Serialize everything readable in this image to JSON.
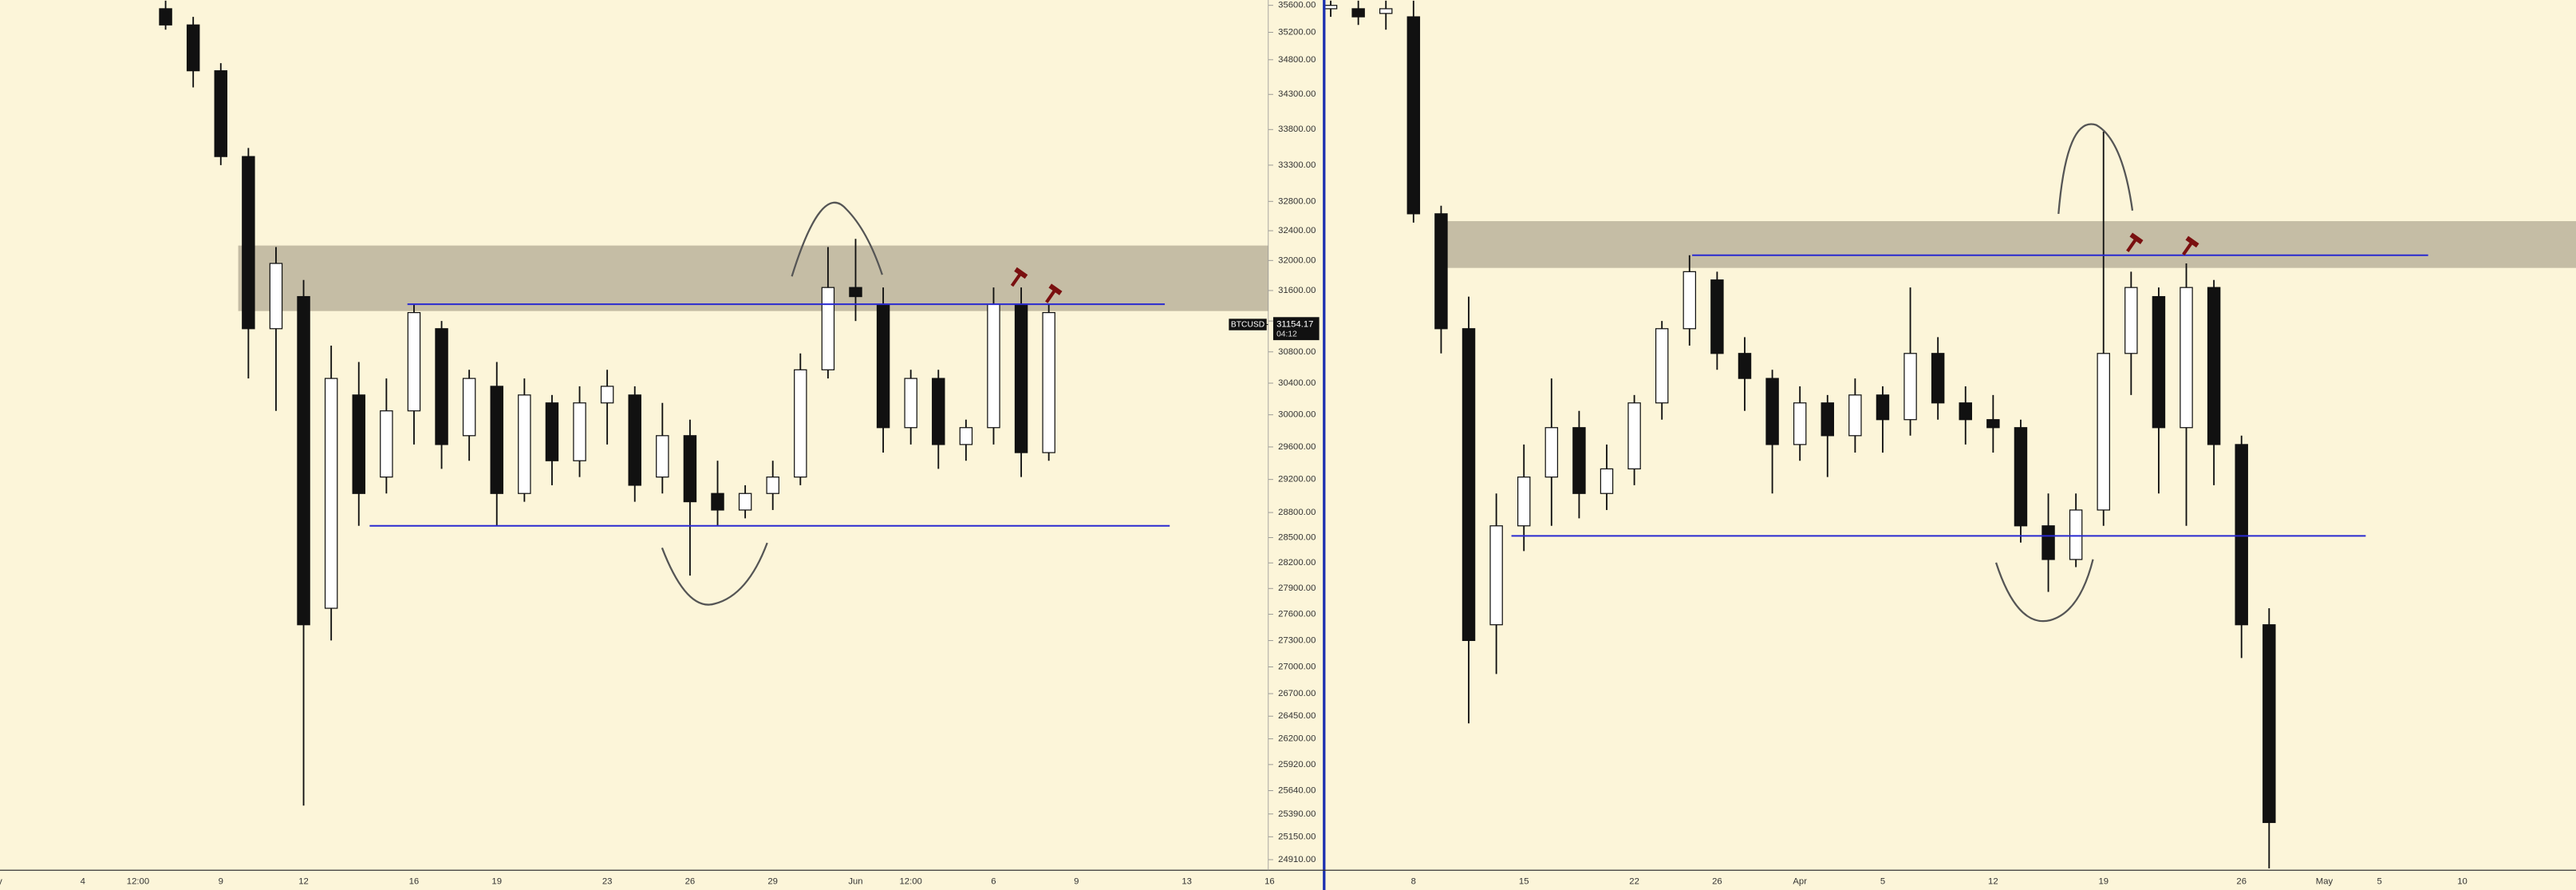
{
  "chart_data": [
    {
      "type": "candlestick",
      "log": true,
      "ylim": [
        24800,
        35680
      ],
      "symbol": "BTCUSD",
      "last_price": 31154.17,
      "countdown": "04:12",
      "levels": [
        31420,
        28640
      ],
      "zone": [
        31330,
        32200
      ],
      "yticks": [
        {
          "value": 35600,
          "label": "35600.00"
        },
        {
          "value": 35200,
          "label": "35200.00"
        },
        {
          "value": 34800,
          "label": "34800.00"
        },
        {
          "value": 34300,
          "label": "34300.00"
        },
        {
          "value": 33800,
          "label": "33800.00"
        },
        {
          "value": 33300,
          "label": "33300.00"
        },
        {
          "value": 32800,
          "label": "32800.00"
        },
        {
          "value": 32400,
          "label": "32400.00"
        },
        {
          "value": 32000,
          "label": "32000.00"
        },
        {
          "value": 31600,
          "label": "31600.00"
        },
        {
          "value": 31200,
          "label": "31200.00"
        },
        {
          "value": 30800,
          "label": "30800.00"
        },
        {
          "value": 30400,
          "label": "30400.00"
        },
        {
          "value": 30000,
          "label": "30000.00"
        },
        {
          "value": 29600,
          "label": "29600.00"
        },
        {
          "value": 29200,
          "label": "29200.00"
        },
        {
          "value": 28800,
          "label": "28800.00"
        },
        {
          "value": 28500,
          "label": "28500.00"
        },
        {
          "value": 28200,
          "label": "28200.00"
        },
        {
          "value": 27900,
          "label": "27900.00"
        },
        {
          "value": 27600,
          "label": "27600.00"
        },
        {
          "value": 27300,
          "label": "27300.00"
        },
        {
          "value": 27000,
          "label": "27000.00"
        },
        {
          "value": 26700,
          "label": "26700.00"
        },
        {
          "value": 26450,
          "label": "26450.00"
        },
        {
          "value": 26200,
          "label": "26200.00"
        },
        {
          "value": 25920,
          "label": "25920.00"
        },
        {
          "value": 25640,
          "label": "25640.00"
        },
        {
          "value": 25390,
          "label": "25390.00"
        },
        {
          "value": 25150,
          "label": "25150.00"
        },
        {
          "value": 24910,
          "label": "24910.00"
        }
      ],
      "categories": [
        "y",
        null,
        null,
        "4",
        null,
        "12:00",
        null,
        null,
        "9",
        null,
        null,
        "12",
        null,
        null,
        null,
        "16",
        null,
        null,
        "19",
        null,
        null,
        null,
        "23",
        null,
        null,
        "26",
        null,
        null,
        "29",
        null,
        null,
        "Jun",
        null,
        "12:00",
        null,
        null,
        "6",
        null,
        null,
        "9",
        null,
        null,
        null,
        "13",
        null,
        null,
        "16"
      ],
      "open": [
        null,
        null,
        null,
        null,
        null,
        null,
        35550,
        35310,
        34640,
        33420,
        31100,
        31520,
        27670,
        30250,
        29230,
        30050,
        31100,
        29740,
        30360,
        29030,
        30150,
        29430,
        30150,
        30250,
        29230,
        29740,
        29030,
        28830,
        29030,
        29230,
        30570,
        31640,
        31420,
        29840,
        30460,
        29630,
        29840,
        31420,
        29530,
        null,
        null,
        null,
        null,
        null,
        null,
        null,
        null
      ],
      "high": [
        null,
        null,
        null,
        null,
        null,
        null,
        35670,
        35430,
        34750,
        33540,
        32180,
        31740,
        30880,
        30670,
        30460,
        31420,
        31200,
        30570,
        30670,
        30460,
        30250,
        30360,
        30570,
        30360,
        30150,
        29940,
        29430,
        29130,
        29430,
        30780,
        32180,
        32290,
        31640,
        30570,
        30570,
        29940,
        31640,
        31640,
        31420,
        null,
        null,
        null,
        null,
        null,
        null,
        null,
        null
      ],
      "low": [
        null,
        null,
        null,
        null,
        null,
        null,
        35240,
        34400,
        33300,
        30460,
        30050,
        25480,
        27300,
        28640,
        29030,
        29630,
        29330,
        29430,
        28640,
        28930,
        29130,
        29230,
        29630,
        28930,
        29030,
        28050,
        28640,
        28730,
        28830,
        29130,
        30460,
        31200,
        29530,
        29630,
        29330,
        29430,
        29630,
        29230,
        29430,
        null,
        null,
        null,
        null,
        null,
        null,
        null,
        null
      ],
      "close": [
        null,
        null,
        null,
        null,
        null,
        null,
        35310,
        34640,
        33420,
        31100,
        31960,
        27480,
        30460,
        29030,
        30050,
        31310,
        29630,
        30460,
        29030,
        30250,
        29430,
        30150,
        30360,
        29130,
        29740,
        28930,
        28830,
        29030,
        29230,
        30570,
        31640,
        31520,
        29840,
        30460,
        29630,
        29840,
        31420,
        29530,
        31310,
        null,
        null,
        null,
        null,
        null,
        null,
        null,
        null
      ]
    },
    {
      "type": "candlestick",
      "log": true,
      "ylim": [
        24800,
        35680
      ],
      "levels": [
        32070,
        28520
      ],
      "zone": [
        31900,
        32530
      ],
      "categories": [
        null,
        null,
        null,
        "8",
        null,
        null,
        null,
        "15",
        null,
        null,
        null,
        "22",
        null,
        null,
        "26",
        null,
        null,
        "Apr",
        null,
        null,
        "5",
        null,
        null,
        null,
        "12",
        null,
        null,
        null,
        "19",
        null,
        null,
        null,
        null,
        "26",
        null,
        null,
        "May",
        null,
        "5",
        null,
        null,
        "10",
        null,
        null,
        null,
        null
      ],
      "open": [
        35550,
        35550,
        35480,
        35430,
        32630,
        31100,
        27480,
        28640,
        29230,
        29840,
        29030,
        29330,
        30150,
        31100,
        31740,
        30780,
        30460,
        29630,
        30150,
        29740,
        30250,
        29940,
        30780,
        30150,
        29940,
        29840,
        28640,
        28240,
        28830,
        30780,
        31520,
        29840,
        31640,
        29630,
        27480,
        null,
        null,
        null,
        null,
        null,
        null,
        null,
        null,
        null,
        null,
        null
      ],
      "high": [
        35670,
        35670,
        35670,
        35670,
        32740,
        31520,
        29030,
        29630,
        30460,
        30050,
        29630,
        30250,
        31200,
        32070,
        31850,
        30990,
        30570,
        30360,
        30250,
        30460,
        30360,
        31640,
        30990,
        30360,
        30250,
        29940,
        29030,
        29030,
        33770,
        31850,
        31640,
        31960,
        31740,
        29740,
        27670,
        null,
        null,
        null,
        null,
        null,
        null,
        null,
        null,
        null,
        null,
        null
      ],
      "low": [
        35430,
        35310,
        35240,
        32510,
        30780,
        26370,
        26920,
        28340,
        28640,
        28730,
        28830,
        29130,
        29940,
        30880,
        30570,
        30050,
        29030,
        29430,
        29230,
        29530,
        29530,
        29740,
        29940,
        29630,
        29530,
        28440,
        27860,
        28150,
        28640,
        30250,
        29030,
        28640,
        29130,
        27100,
        24820,
        null,
        null,
        null,
        null,
        null,
        null,
        null,
        null,
        null,
        null,
        null
      ],
      "close": [
        35600,
        35430,
        35550,
        32630,
        31100,
        27300,
        28640,
        29230,
        29840,
        29030,
        29330,
        30150,
        31100,
        31850,
        30780,
        30460,
        29630,
        30150,
        29740,
        30250,
        29940,
        30780,
        30150,
        29940,
        29840,
        28640,
        28240,
        28830,
        30780,
        31640,
        29840,
        31640,
        29630,
        27480,
        25300,
        null,
        null,
        null,
        null,
        null,
        null,
        null,
        null,
        null,
        null,
        null
      ]
    }
  ]
}
